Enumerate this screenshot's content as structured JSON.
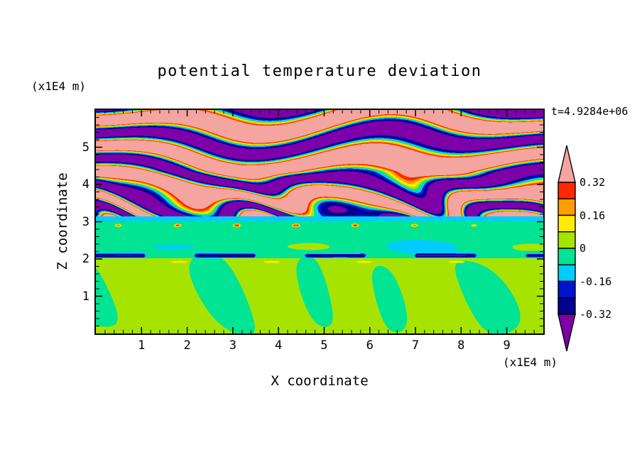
{
  "chart_data": {
    "type": "heatmap",
    "title": "potential temperature deviation",
    "time_label": "t=4.9284e+06",
    "x_axis": {
      "label": "X coordinate",
      "units": "(x1E4 m)",
      "range": [
        0,
        9.8
      ],
      "tick_values": [
        1,
        2,
        3,
        4,
        5,
        6,
        7,
        8,
        9
      ],
      "tick_labels": [
        "1",
        "2",
        "3",
        "4",
        "5",
        "6",
        "7",
        "8",
        "9"
      ],
      "minor_step": 0.2
    },
    "z_axis": {
      "label": "Z coordinate",
      "units": "(x1E4 m)",
      "range": [
        0,
        6
      ],
      "tick_values": [
        1,
        2,
        3,
        4,
        5
      ],
      "tick_labels": [
        "1",
        "2",
        "3",
        "4",
        "5"
      ],
      "minor_step": 0.2
    },
    "colorbar": {
      "tick_values": [
        0.32,
        0.16,
        0,
        -0.16,
        -0.32
      ],
      "tick_labels": [
        "0.32",
        "0.16",
        "0",
        "-0.16",
        "-0.32"
      ],
      "levels": [
        -0.32,
        -0.24,
        -0.16,
        -0.08,
        0,
        0.08,
        0.16,
        0.24,
        0.32
      ],
      "band_colors_low_to_high": [
        "#000091",
        "#0013cd",
        "#00cdff",
        "#00e493",
        "#a6e400",
        "#ffec00",
        "#ff9c00",
        "#ff2800"
      ],
      "under_color": "#7d00a8",
      "over_color": "#f4a5a0"
    },
    "frame_color": "#000000",
    "background": "#ffffff",
    "field_model": {
      "layers": {
        "conv_top": 2.02,
        "mid_top": 3.02,
        "cyan_top": 3.14
      },
      "cyan_band_value": -0.12,
      "conv": {
        "base": 0.032,
        "amp": 0.085,
        "kx": 2.9,
        "kz": 0.9,
        "warp_amp": 1.2,
        "warp_kx": 0.8,
        "warp_ph": 1.9,
        "ripple": 0.016,
        "r_kx": 2.6,
        "r_kz": 1.3,
        "floor": 0.35,
        "streak_z": 1.92,
        "streak_w": 0.07,
        "streak_kx": 3.1,
        "streak_ph": 2.2,
        "streak_thresh": 0.85,
        "streak_amp": 0.09
      },
      "inversion": {
        "z": 2.09,
        "w": 0.055,
        "kx": 2.6,
        "phase": 0.5,
        "thresh": -0.25,
        "value": -0.27
      },
      "mid": {
        "base": -0.045,
        "ripple_amp": 0.012,
        "ripple_kx": 1.7,
        "ripple_kz": 2.2,
        "wisp_amp": 0.05,
        "wisp_z": 2.32,
        "wisp_w": 0.22,
        "wisp_kx": 1.15,
        "speck_z": 2.9,
        "speck_w": 0.1,
        "speck_k1": 7.3,
        "speck_k2": 2.3,
        "speck_thresh": 0.72,
        "speck_amp": 0.38
      },
      "wave": {
        "offset": 0.06,
        "amp": 0.5,
        "squash": 1.7,
        "kz": 6.5,
        "tilt": 0.45,
        "a1": 2.0,
        "m1": [
          0.52,
          0.85,
          2.1
        ],
        "a2": 1.4,
        "m2": [
          1.35,
          -0.95,
          1.6
        ],
        "chaos_top": 4.35,
        "chaos_amp": 2.6,
        "chaos_kx": 2.2,
        "chaos_kz": 3.1,
        "chaos_mod": 0.8,
        "chaos_modk": 1.7
      }
    }
  }
}
